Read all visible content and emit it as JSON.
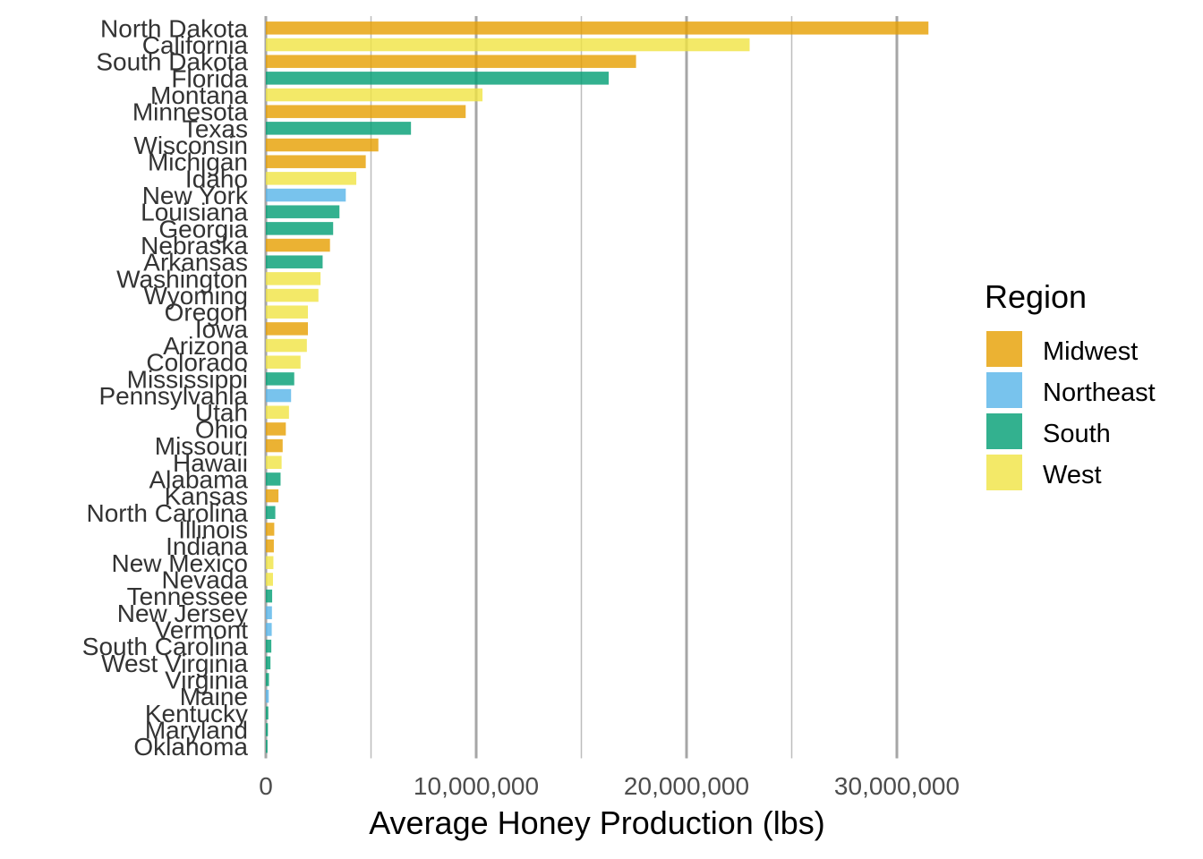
{
  "chart_data": {
    "type": "bar",
    "orientation": "horizontal",
    "xlabel": "Average Honey Production (lbs)",
    "ylabel": "",
    "xlim": [
      0,
      34000000
    ],
    "x_ticks": [
      {
        "value": 0,
        "label": "0"
      },
      {
        "value": 10000000,
        "label": "10,000,000"
      },
      {
        "value": 20000000,
        "label": "20,000,000"
      },
      {
        "value": 30000000,
        "label": "30,000,000"
      }
    ],
    "grid": true,
    "legend": {
      "title": "Region",
      "position": "right",
      "entries": [
        {
          "name": "Midwest",
          "color": "#E69F00"
        },
        {
          "name": "Northeast",
          "color": "#56B4E9"
        },
        {
          "name": "South",
          "color": "#009E73"
        },
        {
          "name": "West",
          "color": "#F0E442"
        }
      ]
    },
    "bars": [
      {
        "state": "North Dakota",
        "value": 31500000,
        "region": "Midwest"
      },
      {
        "state": "California",
        "value": 23000000,
        "region": "West"
      },
      {
        "state": "South Dakota",
        "value": 17600000,
        "region": "Midwest"
      },
      {
        "state": "Florida",
        "value": 16300000,
        "region": "South"
      },
      {
        "state": "Montana",
        "value": 10300000,
        "region": "West"
      },
      {
        "state": "Minnesota",
        "value": 9500000,
        "region": "Midwest"
      },
      {
        "state": "Texas",
        "value": 6900000,
        "region": "South"
      },
      {
        "state": "Wisconsin",
        "value": 5350000,
        "region": "Midwest"
      },
      {
        "state": "Michigan",
        "value": 4750000,
        "region": "Midwest"
      },
      {
        "state": "Idaho",
        "value": 4300000,
        "region": "West"
      },
      {
        "state": "New York",
        "value": 3800000,
        "region": "Northeast"
      },
      {
        "state": "Louisiana",
        "value": 3500000,
        "region": "South"
      },
      {
        "state": "Georgia",
        "value": 3200000,
        "region": "South"
      },
      {
        "state": "Nebraska",
        "value": 3050000,
        "region": "Midwest"
      },
      {
        "state": "Arkansas",
        "value": 2700000,
        "region": "South"
      },
      {
        "state": "Washington",
        "value": 2600000,
        "region": "West"
      },
      {
        "state": "Wyoming",
        "value": 2500000,
        "region": "West"
      },
      {
        "state": "Oregon",
        "value": 2000000,
        "region": "West"
      },
      {
        "state": "Iowa",
        "value": 2000000,
        "region": "Midwest"
      },
      {
        "state": "Arizona",
        "value": 1950000,
        "region": "West"
      },
      {
        "state": "Colorado",
        "value": 1650000,
        "region": "West"
      },
      {
        "state": "Mississippi",
        "value": 1350000,
        "region": "South"
      },
      {
        "state": "Pennsylvania",
        "value": 1200000,
        "region": "Northeast"
      },
      {
        "state": "Utah",
        "value": 1100000,
        "region": "West"
      },
      {
        "state": "Ohio",
        "value": 950000,
        "region": "Midwest"
      },
      {
        "state": "Missouri",
        "value": 800000,
        "region": "Midwest"
      },
      {
        "state": "Hawaii",
        "value": 750000,
        "region": "West"
      },
      {
        "state": "Alabama",
        "value": 700000,
        "region": "South"
      },
      {
        "state": "Kansas",
        "value": 600000,
        "region": "Midwest"
      },
      {
        "state": "North Carolina",
        "value": 450000,
        "region": "South"
      },
      {
        "state": "Illinois",
        "value": 400000,
        "region": "Midwest"
      },
      {
        "state": "Indiana",
        "value": 380000,
        "region": "Midwest"
      },
      {
        "state": "New Mexico",
        "value": 360000,
        "region": "West"
      },
      {
        "state": "Nevada",
        "value": 340000,
        "region": "West"
      },
      {
        "state": "Tennessee",
        "value": 300000,
        "region": "South"
      },
      {
        "state": "New Jersey",
        "value": 290000,
        "region": "Northeast"
      },
      {
        "state": "Vermont",
        "value": 280000,
        "region": "Northeast"
      },
      {
        "state": "South Carolina",
        "value": 260000,
        "region": "South"
      },
      {
        "state": "West Virginia",
        "value": 220000,
        "region": "South"
      },
      {
        "state": "Virginia",
        "value": 150000,
        "region": "South"
      },
      {
        "state": "Maine",
        "value": 140000,
        "region": "Northeast"
      },
      {
        "state": "Kentucky",
        "value": 120000,
        "region": "South"
      },
      {
        "state": "Maryland",
        "value": 100000,
        "region": "South"
      },
      {
        "state": "Oklahoma",
        "value": 80000,
        "region": "South"
      }
    ]
  }
}
